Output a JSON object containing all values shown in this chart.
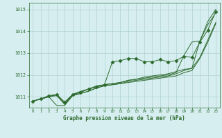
{
  "title": "Graphe pression niveau de la mer (hPa)",
  "bg_color": "#d6eef0",
  "grid_color": "#b0d0d0",
  "line_color": "#2d6a2d",
  "xlim": [
    -0.5,
    23.5
  ],
  "ylim": [
    1010.5,
    1015.3
  ],
  "yticks": [
    1011,
    1012,
    1013,
    1014,
    1015
  ],
  "xticks": [
    0,
    1,
    2,
    3,
    4,
    5,
    6,
    7,
    8,
    9,
    10,
    11,
    12,
    13,
    14,
    15,
    16,
    17,
    18,
    19,
    20,
    21,
    22,
    23
  ],
  "series": [
    {
      "x": [
        0,
        1,
        2,
        3,
        4,
        5,
        6,
        7,
        8,
        9,
        10,
        11,
        12,
        13,
        14,
        15,
        16,
        17,
        18,
        19,
        20,
        21,
        22,
        23
      ],
      "y": [
        1010.8,
        1010.9,
        1011.05,
        1011.1,
        1010.75,
        1011.1,
        1011.2,
        1011.35,
        1011.45,
        1011.55,
        1012.6,
        1012.65,
        1012.75,
        1012.75,
        1012.6,
        1012.6,
        1012.7,
        1012.6,
        1012.65,
        1012.85,
        1012.8,
        1013.5,
        1014.05,
        1014.9
      ],
      "marker": "D",
      "markersize": 2.5
    },
    {
      "x": [
        0,
        1,
        2,
        3,
        4,
        5,
        6,
        7,
        8,
        9,
        10,
        11,
        12,
        13,
        14,
        15,
        16,
        17,
        18,
        19,
        20,
        21,
        22,
        23
      ],
      "y": [
        1010.8,
        1010.9,
        1011.0,
        1011.1,
        1010.75,
        1011.1,
        1011.2,
        1011.35,
        1011.45,
        1011.55,
        1011.6,
        1011.65,
        1011.75,
        1011.8,
        1011.85,
        1011.9,
        1011.95,
        1012.0,
        1012.1,
        1012.9,
        1013.5,
        1013.55,
        1014.45,
        1015.0
      ],
      "marker": null,
      "markersize": 0
    },
    {
      "x": [
        0,
        1,
        2,
        3,
        4,
        5,
        6,
        7,
        8,
        9,
        10,
        11,
        12,
        13,
        14,
        15,
        16,
        17,
        18,
        19,
        20,
        21,
        22,
        23
      ],
      "y": [
        1010.8,
        1010.9,
        1011.0,
        1010.6,
        1010.6,
        1011.05,
        1011.15,
        1011.25,
        1011.4,
        1011.5,
        1011.55,
        1011.6,
        1011.7,
        1011.75,
        1011.8,
        1011.85,
        1011.9,
        1011.95,
        1012.05,
        1012.2,
        1012.3,
        1013.55,
        1014.3,
        1014.85
      ],
      "marker": null,
      "markersize": 0
    },
    {
      "x": [
        0,
        1,
        2,
        3,
        4,
        5,
        6,
        7,
        8,
        9,
        10,
        11,
        12,
        13,
        14,
        15,
        16,
        17,
        18,
        19,
        20,
        21,
        22,
        23
      ],
      "y": [
        1010.8,
        1010.9,
        1011.0,
        1011.1,
        1010.65,
        1011.1,
        1011.25,
        1011.35,
        1011.5,
        1011.55,
        1011.6,
        1011.65,
        1011.75,
        1011.8,
        1011.9,
        1011.95,
        1012.0,
        1012.05,
        1012.15,
        1012.25,
        1012.3,
        1012.8,
        1013.6,
        1014.4
      ],
      "marker": null,
      "markersize": 0
    },
    {
      "x": [
        0,
        1,
        2,
        3,
        4,
        5,
        6,
        7,
        8,
        9,
        10,
        11,
        12,
        13,
        14,
        15,
        16,
        17,
        18,
        19,
        20,
        21,
        22,
        23
      ],
      "y": [
        1010.8,
        1010.9,
        1011.0,
        1011.05,
        1010.65,
        1011.05,
        1011.15,
        1011.25,
        1011.4,
        1011.5,
        1011.55,
        1011.6,
        1011.65,
        1011.7,
        1011.75,
        1011.8,
        1011.85,
        1011.9,
        1011.95,
        1012.1,
        1012.2,
        1012.75,
        1013.5,
        1014.35
      ],
      "marker": null,
      "markersize": 0
    }
  ]
}
